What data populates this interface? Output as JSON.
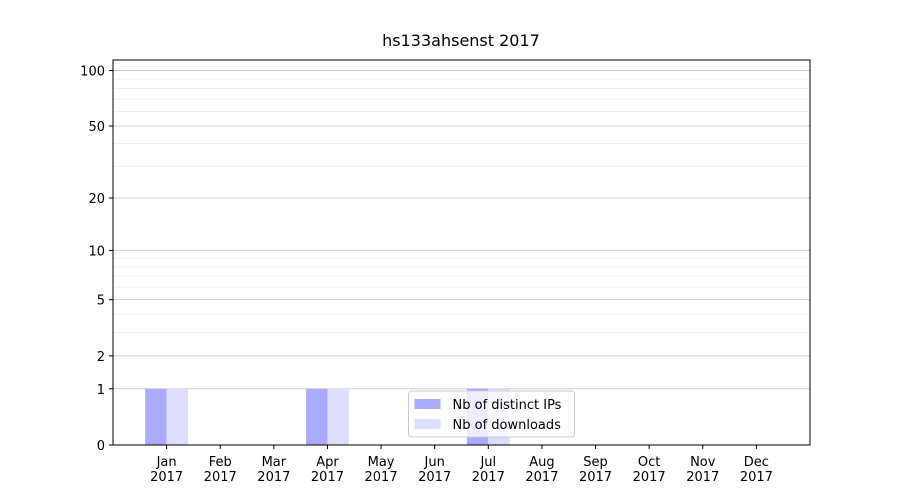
{
  "chart_data": {
    "type": "bar",
    "title": "hs133ahsenst 2017",
    "categories": [
      "Jan 2017",
      "Feb 2017",
      "Mar 2017",
      "Apr 2017",
      "May 2017",
      "Jun 2017",
      "Jul 2017",
      "Aug 2017",
      "Sep 2017",
      "Oct 2017",
      "Nov 2017",
      "Dec 2017"
    ],
    "series": [
      {
        "name": "Nb of distinct IPs",
        "color": "#aaaaff",
        "values": [
          1,
          0,
          0,
          1,
          0,
          0,
          1,
          0,
          0,
          0,
          0,
          0
        ]
      },
      {
        "name": "Nb of downloads",
        "color": "#ddddff",
        "values": [
          1,
          0,
          0,
          1,
          0,
          0,
          1,
          0,
          0,
          0,
          0,
          0
        ]
      }
    ],
    "yscale": "log1p",
    "ylim": [
      0,
      114
    ],
    "yticks": [
      0,
      1,
      2,
      5,
      10,
      20,
      50,
      100
    ],
    "minor_yticks": [
      3,
      4,
      6,
      7,
      8,
      9,
      30,
      40,
      60,
      70,
      80,
      90
    ],
    "grid": true,
    "legend": "lower center"
  }
}
